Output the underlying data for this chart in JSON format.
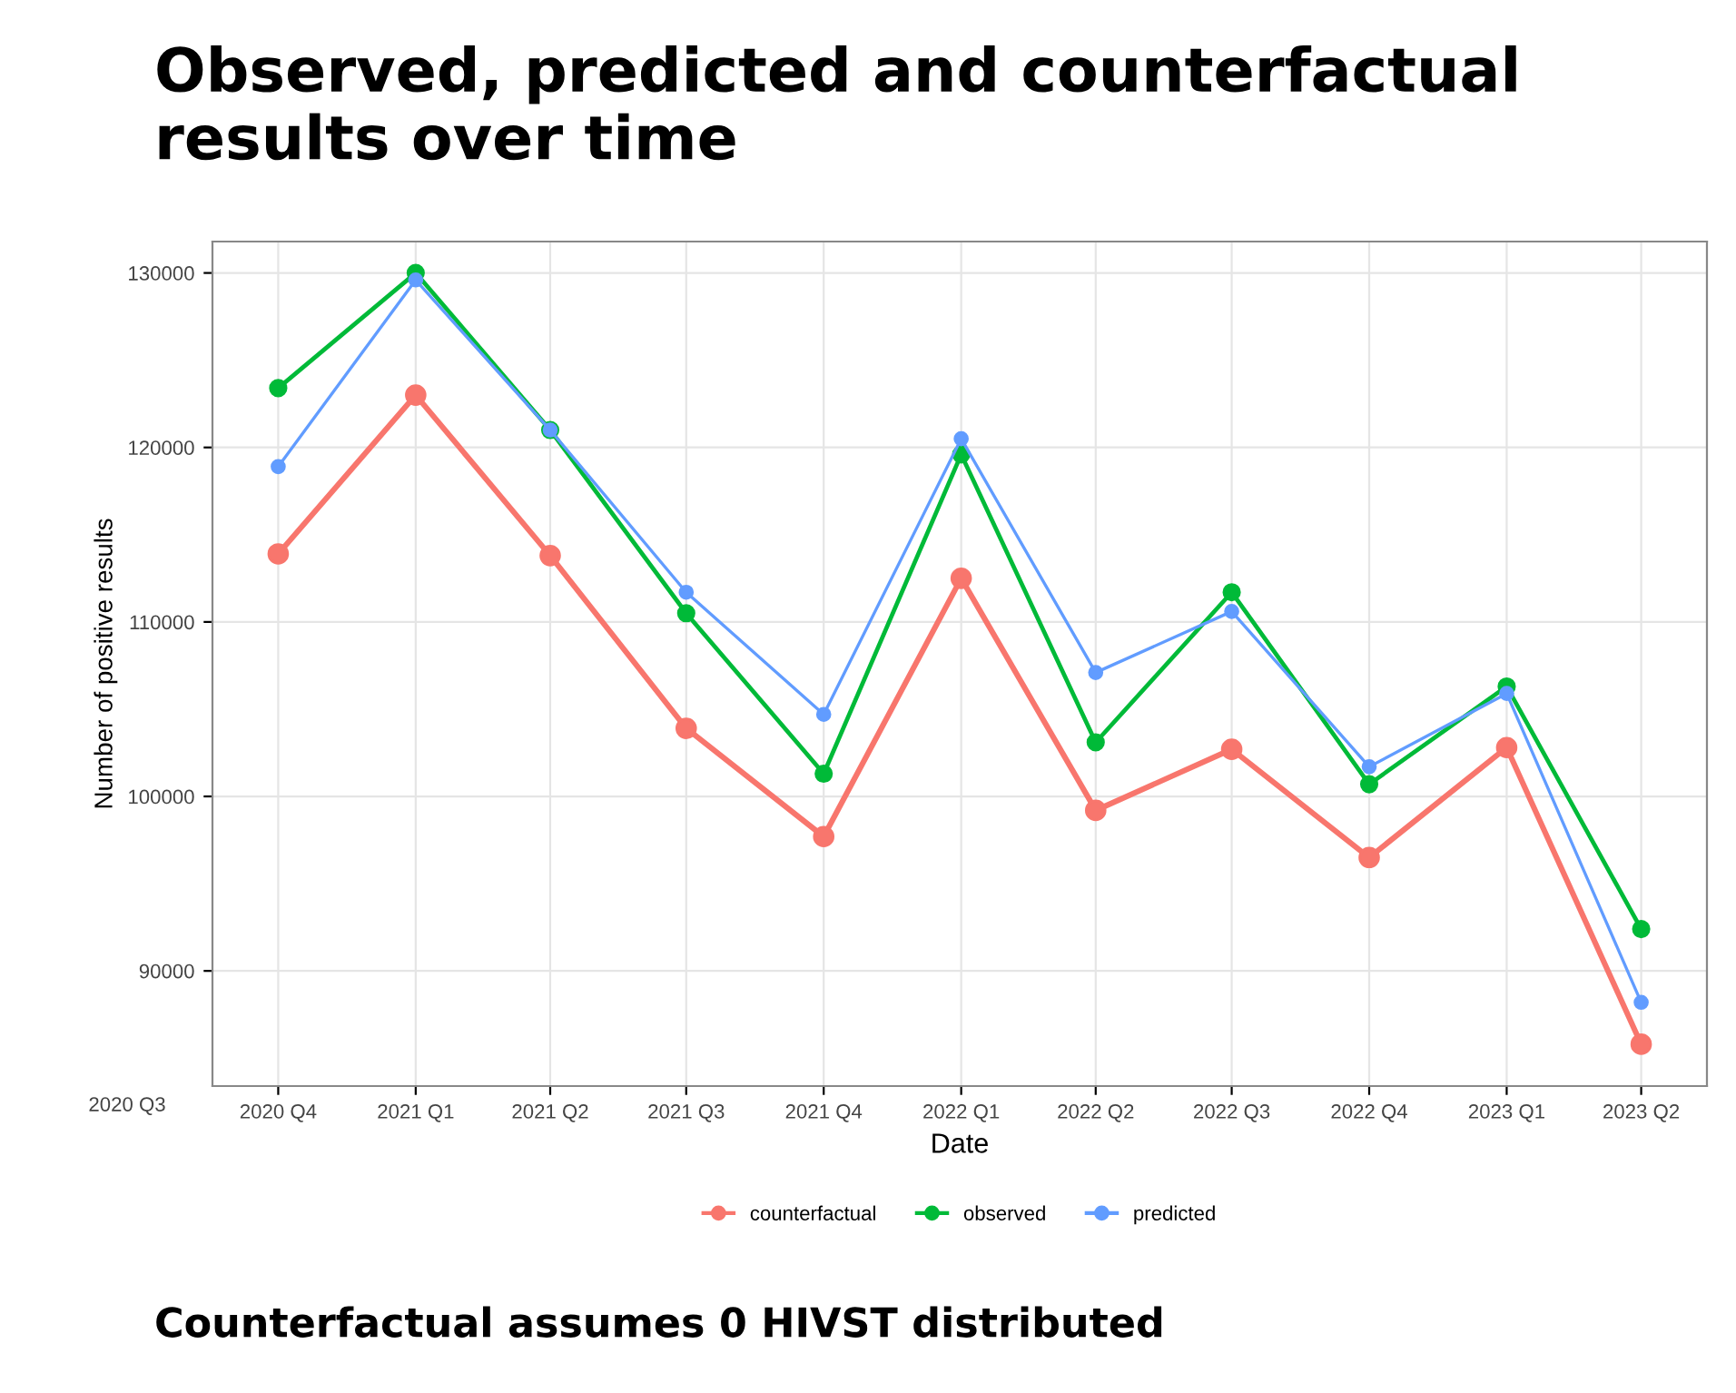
{
  "chart_data": {
    "type": "line",
    "title": "Observed, predicted and counterfactual results over time",
    "xlabel": "Date",
    "ylabel": "Number of positive results",
    "x": [
      "2020-10-01",
      "2021-01-01",
      "2021-04-01",
      "2021-07-01",
      "2021-10-01",
      "2022-01-01",
      "2022-04-01",
      "2022-07-01",
      "2022-10-01",
      "2023-01-01",
      "2023-04-01"
    ],
    "series": [
      {
        "name": "counterfactual",
        "color": "#f8766d",
        "values": [
          113900,
          123000,
          113800,
          103900,
          97700,
          112500,
          99200,
          102700,
          96500,
          102800,
          85800
        ]
      },
      {
        "name": "observed",
        "color": "#00ba38",
        "values": [
          123400,
          130000,
          121000,
          110500,
          101300,
          119600,
          103100,
          111700,
          100700,
          106300,
          92400
        ]
      },
      {
        "name": "predicted",
        "color": "#619cff",
        "values": [
          118900,
          129600,
          121000,
          111700,
          104700,
          120500,
          107100,
          110600,
          101700,
          105900,
          88200
        ]
      }
    ],
    "xlim": [
      "2020-08-18",
      "2023-05-15"
    ],
    "xticks": [
      {
        "value": "2020-10-01",
        "label": "2020 Q4"
      },
      {
        "value": "2021-01-01",
        "label": "2021 Q1"
      },
      {
        "value": "2021-04-01",
        "label": "2021 Q2"
      },
      {
        "value": "2021-07-01",
        "label": "2021 Q3"
      },
      {
        "value": "2021-10-01",
        "label": "2021 Q4"
      },
      {
        "value": "2022-01-01",
        "label": "2022 Q1"
      },
      {
        "value": "2022-04-01",
        "label": "2022 Q2"
      },
      {
        "value": "2022-07-01",
        "label": "2022 Q3"
      },
      {
        "value": "2022-10-01",
        "label": "2022 Q4"
      },
      {
        "value": "2023-01-01",
        "label": "2023 Q1"
      },
      {
        "value": "2023-04-01",
        "label": "2023 Q2"
      }
    ],
    "ylim": [
      83400,
      131800
    ],
    "yticks": [
      90000,
      100000,
      110000,
      120000,
      130000
    ],
    "grid": true,
    "legend": "bottom",
    "marker": "circle",
    "line_style": "solid",
    "annotations": [
      "2020 Q3",
      "Counterfactual assumes 0 HIVST distributed"
    ]
  }
}
